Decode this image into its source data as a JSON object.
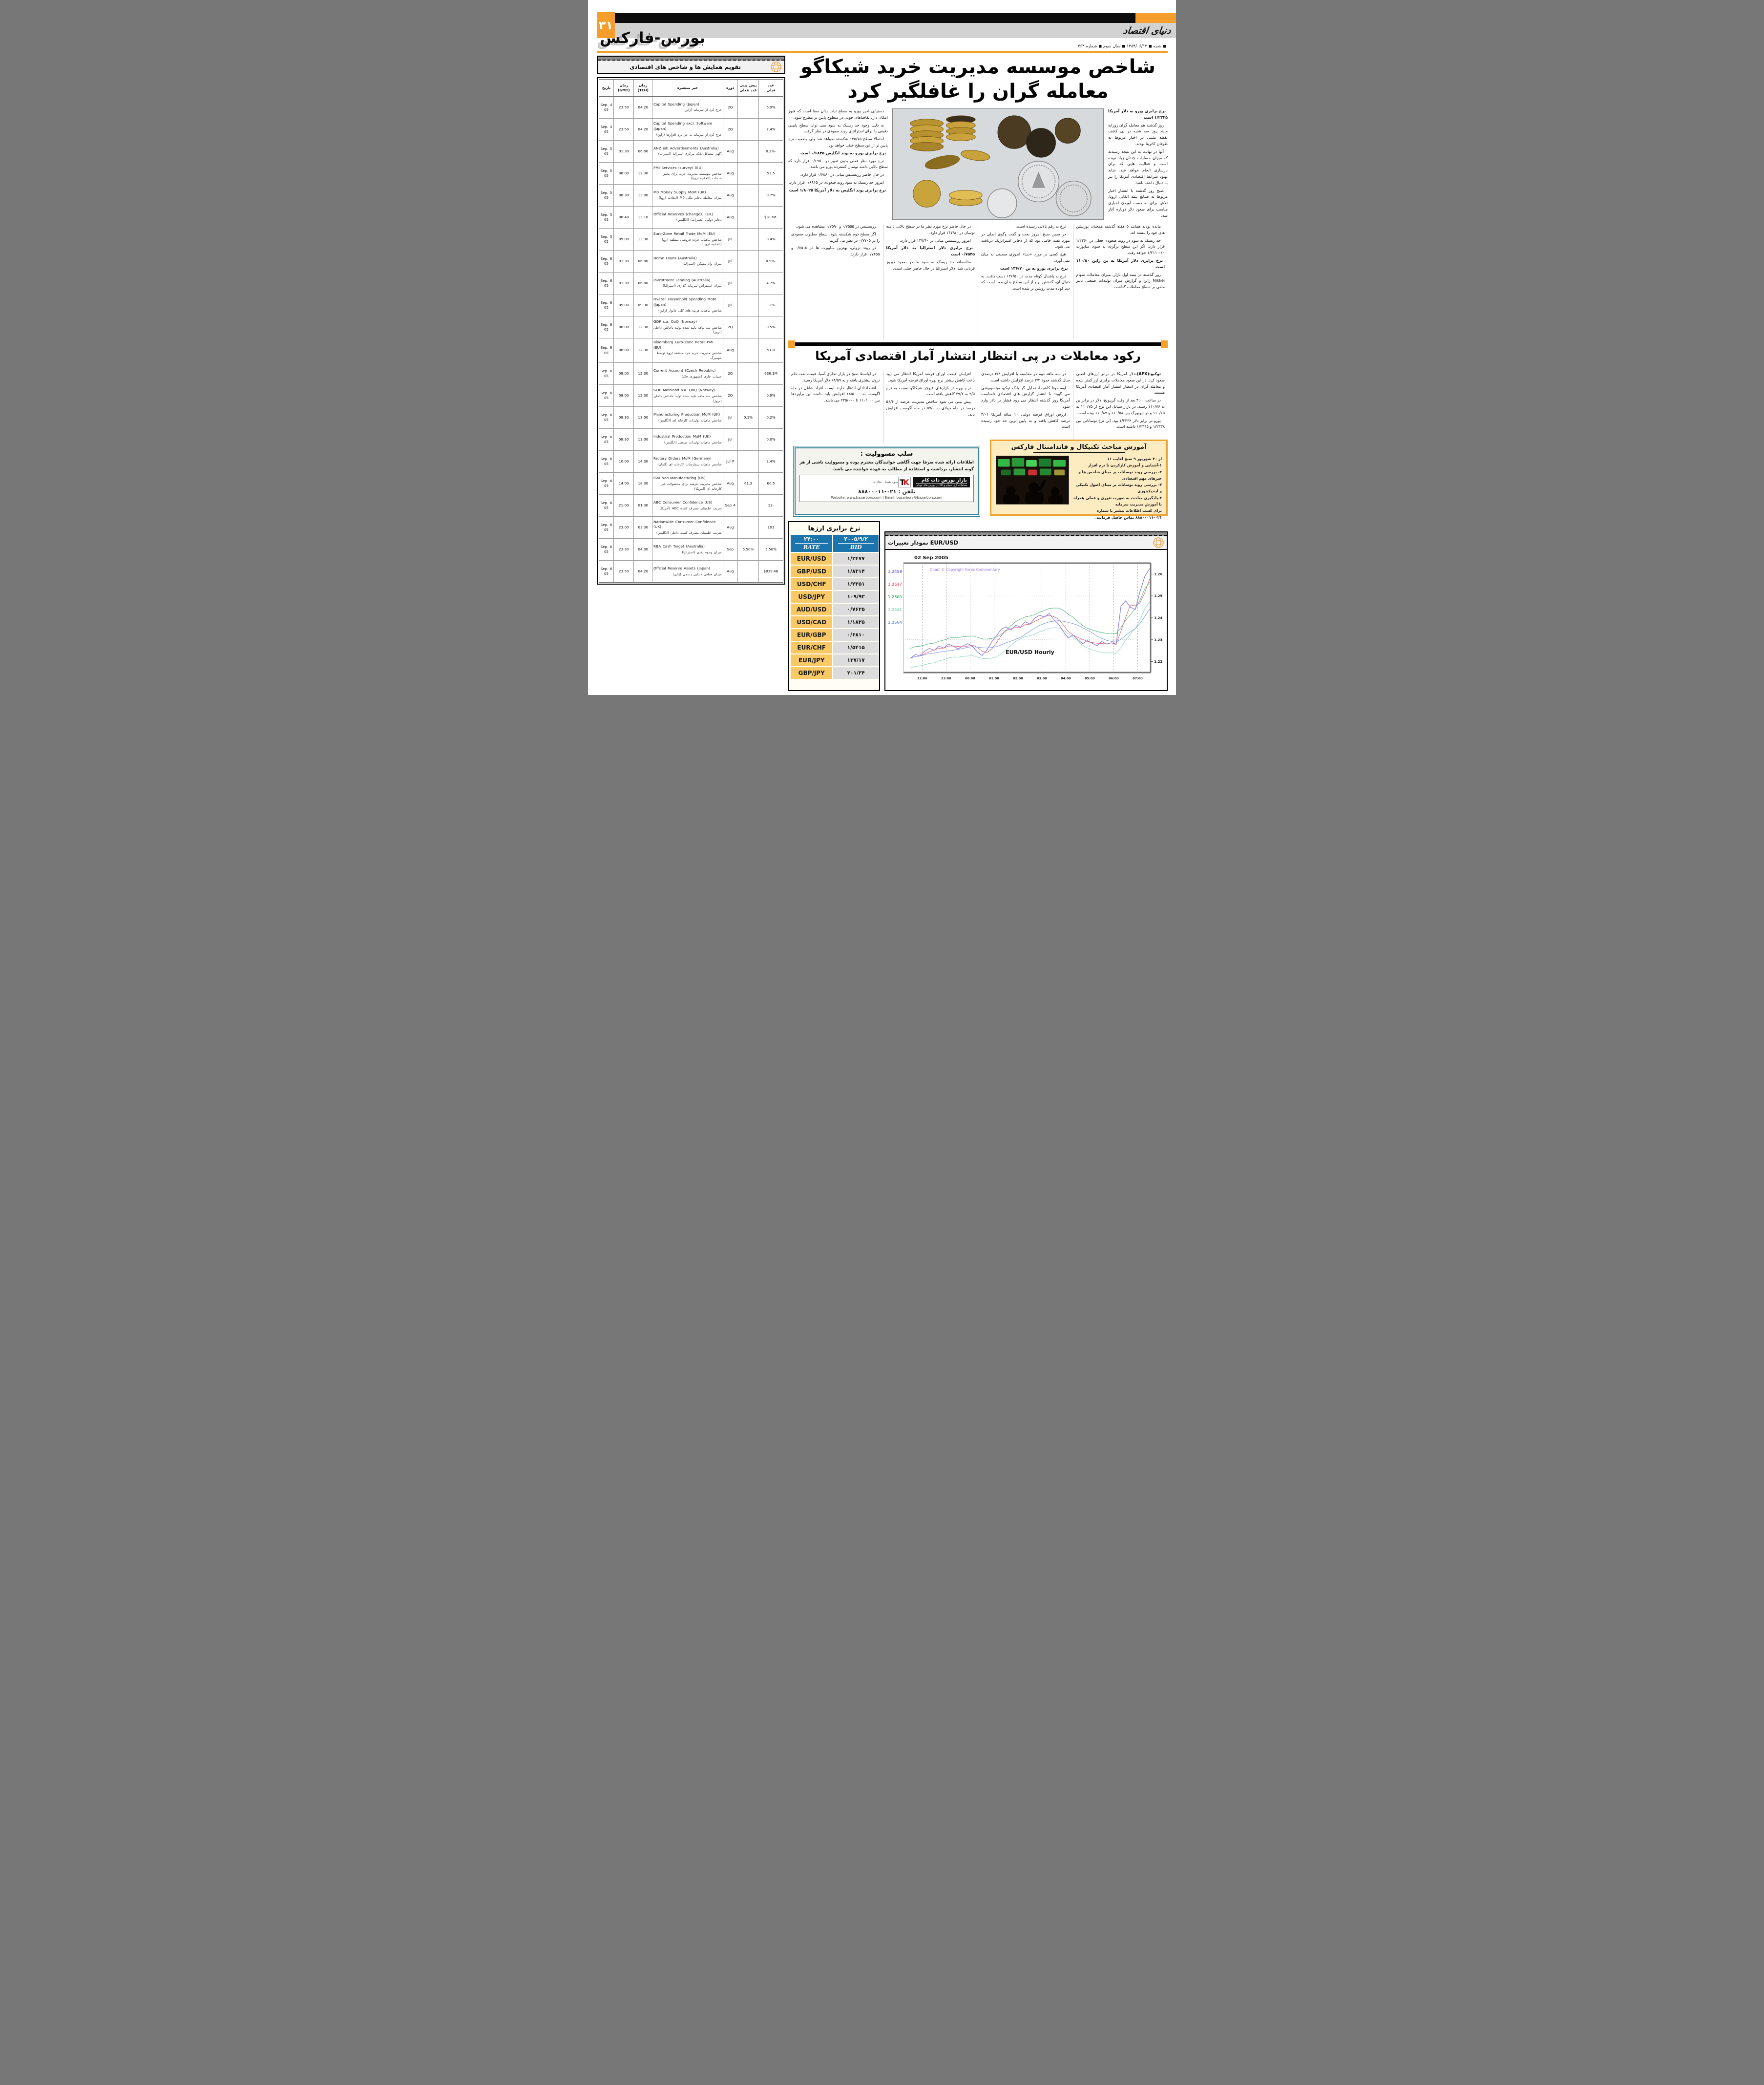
{
  "page": {
    "number": "۳۱",
    "logo": "دنیای اقتصاد",
    "section": "بورس-فارکس",
    "dateline": "◼ شنبه ◼ ۱۳۸۴/۰۶/۱۲ ◼ سال سوم ◼ شماره ۷۶۴",
    "accent_orange": "#F5A028"
  },
  "calendar": {
    "title": "تقویم همایش ها و شاخص های اقتصادی",
    "headers": [
      [
        "تاریخ",
        ""
      ],
      [
        "زمان",
        "(GMT)"
      ],
      [
        "زمان",
        "(TEH)"
      ],
      [
        "خبر منتشره",
        ""
      ],
      [
        "دوره",
        ""
      ],
      [
        "پیش بینی",
        "عدد فعلی"
      ],
      [
        "عدد",
        "قبلی"
      ]
    ],
    "rows": [
      {
        "date": "4 Sep. 05",
        "gmt": "23:50",
        "teh": "04:20",
        "en": "Capital Spending (Japan)",
        "fa": "خرج کرد از سرمایه (ژاپن)",
        "period": "2Q",
        "forecast": "",
        "previous": "6.9%"
      },
      {
        "date": "4 Sep. 05",
        "gmt": "23:50",
        "teh": "04:20",
        "en": "Capital Spending excl. Software (Japan)",
        "fa": "خرج کرد از سرمایه به جز نرم افزارها (ژاپن)",
        "period": "2Q",
        "forecast": "",
        "previous": "7.4%"
      },
      {
        "date": "5 Sep. 05",
        "gmt": "01:30",
        "teh": "06:00",
        "en": "ANZ Job Advertisements (Australia)",
        "fa": "آگهی مشاغل بانک مرکزی استرالیا (استرالیا)",
        "period": "Aug",
        "forecast": "",
        "previous": "-0.2%"
      },
      {
        "date": "5 Sep. 05",
        "gmt": "08:00",
        "teh": "12:30",
        "en": "PMI Services (survey) (EU)",
        "fa": "شاخص موسسه مدیریت خرید برای بخش خدمات (اتحادیه اروپا)",
        "period": "Aug",
        "forecast": "",
        "previous": "53.5"
      },
      {
        "date": "5 Sep. 05",
        "gmt": "08:30",
        "teh": "13:00",
        "en": "M0 Money Supply MoM (UK)",
        "fa": "میزان معامله ذخایر مالی M0 (اتحادیه اروپا)",
        "period": "Aug",
        "forecast": "",
        "previous": "0.7%"
      },
      {
        "date": "5 Sep. 05",
        "gmt": "08:40",
        "teh": "13:10",
        "en": "Official Reserves (changes) (UK)",
        "fa": "ذخایر دولتی (تغییرات) (انگلیس)",
        "period": "Aug",
        "forecast": "",
        "previous": "-$317M"
      },
      {
        "date": "5 Sep. 05",
        "gmt": "09:00",
        "teh": "13:30",
        "en": "Euro-Zone Retail Trade MoM (EU)",
        "fa": "شاخص ماهیانه خرده فروشی منطقه اروپا (اتحادیه اروپا)",
        "period": "Jul",
        "forecast": "",
        "previous": "0.4%"
      },
      {
        "date": "6 Sep. 05",
        "gmt": "01:30",
        "teh": "06:00",
        "en": "Home Loans (Australia)",
        "fa": "میزان وام مسکن (استرالیا)",
        "period": "Jul",
        "forecast": "",
        "previous": "-0.9%"
      },
      {
        "date": "6 Sep. 05",
        "gmt": "01:30",
        "teh": "06:00",
        "en": "Investment Lending (Australia)",
        "fa": "میزان استقراض سرمایه گذاری (استرالیا)",
        "period": "Jul",
        "forecast": "",
        "previous": "4.7%"
      },
      {
        "date": "6 Sep. 05",
        "gmt": "05:00",
        "teh": "09:30",
        "en": "Overall Household Spending MoM (Japan)",
        "fa": "شاخص ماهیانه هزینه های کلی خانوار (ژاپن)",
        "period": "Jul",
        "forecast": "",
        "previous": "-1.2%"
      },
      {
        "date": "6 Sep. 05",
        "gmt": "08:00",
        "teh": "12:30",
        "en": "GDP s.a. QoQ (Norway)",
        "fa": "شاخص سه ماهه تایید شده تولید ناخالص داخلی (نروژ)",
        "period": "2Q",
        "forecast": "",
        "previous": "0.5%"
      },
      {
        "date": "6 Sep. 05",
        "gmt": "08:00",
        "teh": "12:30",
        "en": "Bloomberg Euro-Zone Retail PMI (EU)",
        "fa": "شاخص مدیریت خرید خرد منطقه اروپا توسط بلومبرگ",
        "period": "Aug",
        "forecast": "",
        "previous": "51.0"
      },
      {
        "date": "6 Sep. 05",
        "gmt": "08:00",
        "teh": "12:30",
        "en": "Current Account (Czech Republic)",
        "fa": "حساب جاری (جمهوری چک)",
        "period": "2Q",
        "forecast": "",
        "previous": "636.1M"
      },
      {
        "date": "6 Sep. 05",
        "gmt": "08:00",
        "teh": "12:30",
        "en": "GDP Mainland s.a. QoQ (Norway)",
        "fa": "شاخص سه ماهه تایید شده تولید ناخالص داخلی (نروژ)",
        "period": "2Q",
        "forecast": "",
        "previous": "0.9%"
      },
      {
        "date": "6 Sep. 05",
        "gmt": "08:30",
        "teh": "13:00",
        "en": "Manufacturing Production MoM (UK)",
        "fa": "شاخص ماهیانه تولیدات کارخانه ای (انگلیس)",
        "period": "Jul",
        "forecast": "0.1%",
        "previous": "0.2%"
      },
      {
        "date": "6 Sep. 05",
        "gmt": "08:30",
        "teh": "13:00",
        "en": "Industrial Production MoM (UK)",
        "fa": "شاخص ماهیانه تولیدات صنعتی (انگلیس)",
        "period": "Jul",
        "forecast": "",
        "previous": "0.0%"
      },
      {
        "date": "6 Sep. 05",
        "gmt": "10:00",
        "teh": "14:30",
        "en": "Factory Orders MoM (Germany)",
        "fa": "شاخص ماهیانه سفارشات کارخانه ای (آلمان)",
        "period": "Jul P",
        "forecast": "",
        "previous": "2.4%"
      },
      {
        "date": "6 Sep. 05",
        "gmt": "14:00",
        "teh": "18:30",
        "en": "ISM Non-Manufacturing (US)",
        "fa": "شاخص مدیریت عرضه برای محصولات غیر کارخانه ای (آمریکا)",
        "period": "Aug",
        "forecast": "61.3",
        "previous": "60.5"
      },
      {
        "date": "6 Sep. 05",
        "gmt": "21:00",
        "teh": "01:30",
        "en": "ABC Consumer Confidence (US)",
        "fa": "ضریب اطمینان مصرف کننده ABC (آمریکا)",
        "period": "Sep 4",
        "forecast": "",
        "previous": "-12"
      },
      {
        "date": "6 Sep. 05",
        "gmt": "23:00",
        "teh": "03:30",
        "en": "Nationwide Consumer Confidence (UK)",
        "fa": "ضریب اطمینان مصرف کننده داخلی (انگلیس)",
        "period": "Aug",
        "forecast": "",
        "previous": "101"
      },
      {
        "date": "6 Sep. 05",
        "gmt": "23:30",
        "teh": "04:00",
        "en": "RBA Cash Target (Australia)",
        "fa": "میزان وجوه نقدی (استرالیا)",
        "period": "Sep",
        "forecast": "5.50%",
        "previous": "5.50%"
      },
      {
        "date": "6 Sep. 05",
        "gmt": "23:50",
        "teh": "04:20",
        "en": "Official Reserve Assets (Japan)",
        "fa": "میزان قطعی دارایی رسمی (ژاپن)",
        "period": "Aug",
        "forecast": "",
        "previous": "$839.4B"
      }
    ]
  },
  "article1": {
    "headline_l1": "شاخص موسسه مدیریت خرید شیکاگو",
    "headline_l2": "معامله گران را غافلگیر کرد",
    "col_right": [
      {
        "b": "نرخ برابری یورو به دلار آمریکا ۱/۲۳۳۵ است"
      },
      {
        "t": "روز گذشته هم معامله گران روزانه مانند روز سه شنبه در پی کشف نقطه مثبتی در اخبار مربوط به طوفان کاترینا بودند."
      },
      {
        "t": "آنها در نهایت به این نتیجه رسیدند که میزان خسارات چندان زیاد نبوده است و فعالیت هایی که برای بازسازی انجام خواهد شد، شاید بهبود شرایط اقتصادی آمریکا را نیز به دنبال داشته باشد."
      },
      {
        "t": "صبح روز گذشته با انتشار اخبار مربوط به صنایع بیمه اتکایی اروپا، تلاش برای به دست آوردن اخباری مناسب برای صعود دلار دوباره آغاز شد."
      },
      {
        "t": "به دنبال شایعاتی که پس از اخبار خسارات منتشر شد، این گروه تلاش کردند با فروش یورو اعتبار پوزیشن های خرید دلاری که دارند حفظ کنند."
      },
      {
        "t": "آمار اقتصادی اروپا که صبح منتشر شد نیز کمی پایین تر از حد انتظار بود."
      }
    ],
    "col_left": [
      {
        "t": "دستیابی اخیر یورو به سطح ثبات بدان معنا است که هنوز امکان دارد تقاضاهای خوبی در سطوح پایین تر مطرح شود."
      },
      {
        "t": "به دلیل وجود حد ریسک به سود نمی توان سطح پایینی دقیقی را برای استراتژی روند صعودی در نظر گرفت."
      },
      {
        "t": "احتمالا سطح ۱۳۵/۷۵ شکسته نخواهد شد ولی وضعیت نرخ پایین تر از این سطح خنثی خواهد بود."
      },
      {
        "b": "نرخ برابری یورو به پوند انگلیس ۰/۶۸۴۵ است"
      },
      {
        "t": "نرخ مورد نظر فعلی بدون تغییر در ۰/۶۹۵۰ قرار دارد که سطح بالایی دامنه نوسان گسترده یورو می باشد."
      },
      {
        "t": "در حال حاضر رزیستنس میانی در ۰/۶۸۶۰ قرار دارد."
      },
      {
        "t": "امروز حد ریسک به سود روند صعودی در ۰/۶۸۱۵ قرار دارد."
      },
      {
        "b": "نرخ برابری پوند انگلیس به دلار آمریکا ۱/۸۰۲۵ است"
      }
    ],
    "bottom_cols": [
      [
        {
          "t": "مانده بودند همانند ۵ هفته گذشته همچنان پوزیشن های خود را نبسته اند."
        },
        {
          "t": "حد ریسک به سود در روند صعودی فعلی در ۱/۲۲۶۰ قرار دارد. اگر این سطح برگردد به سوی ساپورت ۲۰-۱/۲۱۱۰ خواهد رفت."
        },
        {
          "b": "نرخ برابری دلار آمریکا به ین ژاپن ۱۱۰/۸۰ است"
        },
        {
          "t": "روز گذشته در نیمه اول بازار، میزان معاملات سهام Nikkei ژاپن و گزارش میزان تولیدات صنعتی تاثیر منفی بر سطح معاملات گذاشت."
        }
      ],
      [
        {
          "t": "نرخ به رقم بالایی رسیده است."
        },
        {
          "t": "در ضمن صبح امروز بحث و گفت وگوی اصلی در مورد نفت خامی بود که از ذخایر استراتژیک دریافت می شود."
        },
        {
          "t": "هیچ کسی در مورد «دید» اندوزی صحبتی به میان نمی آورد."
        },
        {
          "b": "نرخ برابری یورو به ین ۱۳۶/۷۰ است"
        },
        {
          "t": "نرخ به پاشنال کوتاه مدت در ۱۳۶/۵۰ دست یافت. به دنبال آن، گذشتن نرخ از این سطح بدان معنا است که دید کوتاه مدت روشن تر شده است."
        }
      ],
      [
        {
          "t": "در حال حاضر نرخ مورد نظر ما در سطح بالایی دامنه نوسان در ۱۳۷/۸۰ قرار دارد."
        },
        {
          "t": "امروز رزیستنس میانی در ۱۳۷/۴۰ قرار دارد."
        },
        {
          "b": "نرخ برابری دلار استرالیا به دلار آمریکا ۰/۷۵۴۵ است"
        },
        {
          "t": "متاسفانه حد ریسک به سود ما در صعود دیروز قربانی شد. دلار استرالیا در حال حاضر خنثی است."
        }
      ],
      [
        {
          "t": "رزیستنس در ۰/۷۵۵۵ و ۰/۷۵۹۰ مشاهده می شود."
        },
        {
          "t": "اگر سطح دوم شکسته شود، سطح مطلوب صعودی را در ۰/۷۷۰۵ در نظر می گیریم."
        },
        {
          "t": "در روند نزولی، بهترین ساپورت ها در ۰/۷۵۱۵ و ۰/۷۴۵۵ قرار دارند."
        }
      ]
    ]
  },
  "article2": {
    "headline": "رکود معاملات در پی انتظار انتشار آمار اقتصادی آمریکا",
    "cols": [
      [
        {
          "lead": "توکیو:(AFX)-",
          "t": "دلار آمریکا در برابر ارزهای اصلی صعود کرد. در این صعود معاملات برابری ارز کمتر شده و معامله گران در انتظار انتشار آمار اقتصادی آمریکا هستند."
        },
        {
          "t": "در ساعت ۴:۰۰ بعد از وقت گرینویچ، دلار در برابر ین به ۱۱۰/۷۶ رسید. در بازار سیاتل این نرخ از ۱۱۰/۷۵ به ۱۱۰/۶۵ و در نیویورک بین ۱۱۰/۵۸ و ۱۱۰/۸۷ بوده است."
        },
        {
          "t": "یورو در برابر دلار ۱/۲۳۳۴ بود. این نرخ نوسانانی بین ۱/۲۳۳۸ و ۱/۲۳۴۵ داشته است."
        }
      ],
      [
        {
          "t": "در سه ماهه دوم در مقایسه با افزایش ۳/۴ درصدی سال گذشته حدود ۳/۳ درصد افزایش داشته است."
        },
        {
          "t": "اوساموتا کاشیما، تحلیل گر بانک توکیو میتسوبیشی می گوید: با انتشار گزارش های اقتصادی نامناسب آمریکا روز گذشته انتظار می رود فشار بر دلار وارد شود."
        },
        {
          "t": "ارزش اوراق قرضه دولتی ۱۰ ساله آمریکا ۴/۰۱ درصد کاهش یافته و به پایین ترین حد خود رسیده است."
        }
      ],
      [
        {
          "t": "افزایش قیمت اوراق قرضه آمریکا انتظار می رود باعث کاهش بیشتر نرخ بهره اوراق قرضه آمریکا شود."
        },
        {
          "t": "نرخ بهره در بازارهای فیوچر شیکاگو نسبت به نرخ ۳/۵ به ۴۹/۲ کاهش یافته است."
        },
        {
          "t": "پیش بینی می شود شاخص مدیریت عرضه از ۵۶/۶ درصد در ماه جولای به ۵۷/۰ در ماه آگوست افزایش یابد."
        }
      ],
      [
        {
          "t": "در اواسط صبح در بازار تجاری آسیا، قیمت نفت خام نزول بیشتری یافته و به ۶۸/۵۹ دلار آمریکا رسید."
        },
        {
          "t": "اقتصاددانان انتظار دارند لیست افراد شاغل در ماه آگوست به ۱۸۵/۰۰۰ افزایش یابد. دامنه این برآوردها بین ۱۱۰/۰۰۰ تا ۲۳۵/۰۰۰ می باشد."
        }
      ]
    ]
  },
  "disclaimer": {
    "title": "سلب مسوولیت :",
    "body": "اطلاعات ارائه شده صرفا جهت آگاهی خوانندگان محترم بوده و مسوولیت ناشی از هر گونه انتشار، برداشت و استفاده از مطالب به عهده خواننده می باشد."
  },
  "ad": {
    "slogan": "سود شما ، بقاء ما .",
    "brand": "بازار بورس دات کام",
    "brand_sub": "معاملات ارز، سهام و کالا در بورس های جهانی",
    "phone": "تلفن : ۰۲۱-۸۸۸۰۰۰۱۱",
    "web_email": "Website: www.bazarbors.com   |   Email: bazarbors@bazarbors.com",
    "logo_t": "T",
    "logo_k": "K"
  },
  "training": {
    "title": "آموزش مباحث تکنیکال و فاندامنتال فارکس",
    "lines": [
      "از ۲۰ شهریور ۹ صبح لغایت ۱۱",
      "۱-آشنایی و آموزش کارکردن با نرم افزار",
      "۲- بررسی روند نوسانات بر مبنای شاخص ها و خبرهای مهم اقتصادی",
      "۳- بررسی روند نوسانات بر مبنای اصول تکنیکی و ایندیکیتوری",
      "۴-یادگیری مباحث به صورت تئوری و عملی همراه با آموزش مدیریت سرمایه",
      "برای کسب اطلاعات بیشتر با شماره ۰۲۱-۸۸۸۰۰۰۱۱ تماس حاصل فرمایید."
    ]
  },
  "currency": {
    "title": "نرخ برابری ارزها",
    "h_rate_top": "۲۴:۰۰",
    "h_rate_bottom": "RATE",
    "h_bid_top": "۲۰۰۵/۹/۲",
    "h_bid_bottom": "BID",
    "pair_bg": "#F8C964",
    "bid_bg": "#DCDCDC",
    "header_bg": "#1C74AC",
    "rows": [
      [
        "EUR/USD",
        "۱/۲۴۷۷"
      ],
      [
        "GBP/USD",
        "۱/۸۳۱۴"
      ],
      [
        "USD/CHF",
        "۱/۲۳۵۱"
      ],
      [
        "USD/JPY",
        "۱۰۹/۹۳"
      ],
      [
        "AUD/USD",
        "۰/۷۶۲۵"
      ],
      [
        "USD/CAD",
        "۱/۱۸۲۵"
      ],
      [
        "EUR/GBP",
        "۰/۶۸۱۰"
      ],
      [
        "EUR/CHF",
        "۱/۵۴۱۵"
      ],
      [
        "EUR/JPY",
        "۱۳۷/۱۷"
      ],
      [
        "GBP/JPY",
        "۲۰۱/۳۴"
      ]
    ]
  },
  "chart_section": {
    "title": "نمودار تغییرات EUR/USD"
  },
  "chart_data": {
    "type": "line",
    "title": "02 Sep 2005",
    "watermark": "Chart © Copyright Forex Commentary",
    "center_label": "EUR/USD Hourly",
    "x_labels": [
      "22:00",
      "23:00",
      "00:00",
      "01:00",
      "02:00",
      "03:00",
      "04:00",
      "05:00",
      "06:00",
      "07:00"
    ],
    "y_ticks": [
      1.26,
      1.25,
      1.24,
      1.23,
      1.22
    ],
    "ylim": [
      1.215,
      1.265
    ],
    "grid": "dashed-vertical, dotted-horizontal",
    "legend": [
      {
        "value": "1.2458",
        "color": "#8b7ae0"
      },
      {
        "value": "1.2517",
        "color": "#e06070"
      },
      {
        "value": "1.2503",
        "color": "#53b97c"
      },
      {
        "value": "1.2441",
        "color": "#8fd7c2"
      },
      {
        "value": "1.2564",
        "color": "#7e97e6"
      }
    ],
    "series": [
      {
        "name": "price",
        "color": "#8b7ae0",
        "values": [
          1.2215,
          1.2232,
          1.2228,
          1.2248,
          1.226,
          1.2252,
          1.227,
          1.2262,
          1.228,
          1.227,
          1.2258,
          1.2272,
          1.2282,
          1.227,
          1.2244,
          1.2228,
          1.2252,
          1.229,
          1.2318,
          1.2348,
          1.2358,
          1.2344,
          1.2366,
          1.2358,
          1.2382,
          1.2372,
          1.2398,
          1.2412,
          1.2404,
          1.242,
          1.2392,
          1.237,
          1.2336,
          1.2308,
          1.2322,
          1.23,
          1.2282,
          1.2296,
          1.2284,
          1.2272,
          1.2292,
          1.228,
          1.2286,
          1.2278,
          1.2452,
          1.2478,
          1.2448,
          1.2438,
          1.252,
          1.259,
          1.2625
        ]
      },
      {
        "name": "ma_fast",
        "color": "#e06070",
        "derive": "sma",
        "window": 3
      },
      {
        "name": "band_up",
        "color": "#53b97c",
        "derive": "sma_offset",
        "window": 6,
        "offset": 0.0045
      },
      {
        "name": "band_low",
        "color": "#8fd7c2",
        "derive": "sma_offset",
        "window": 6,
        "offset": -0.0045
      },
      {
        "name": "ma_slow",
        "color": "#7e97e6",
        "derive": "sma",
        "window": 10
      }
    ]
  }
}
